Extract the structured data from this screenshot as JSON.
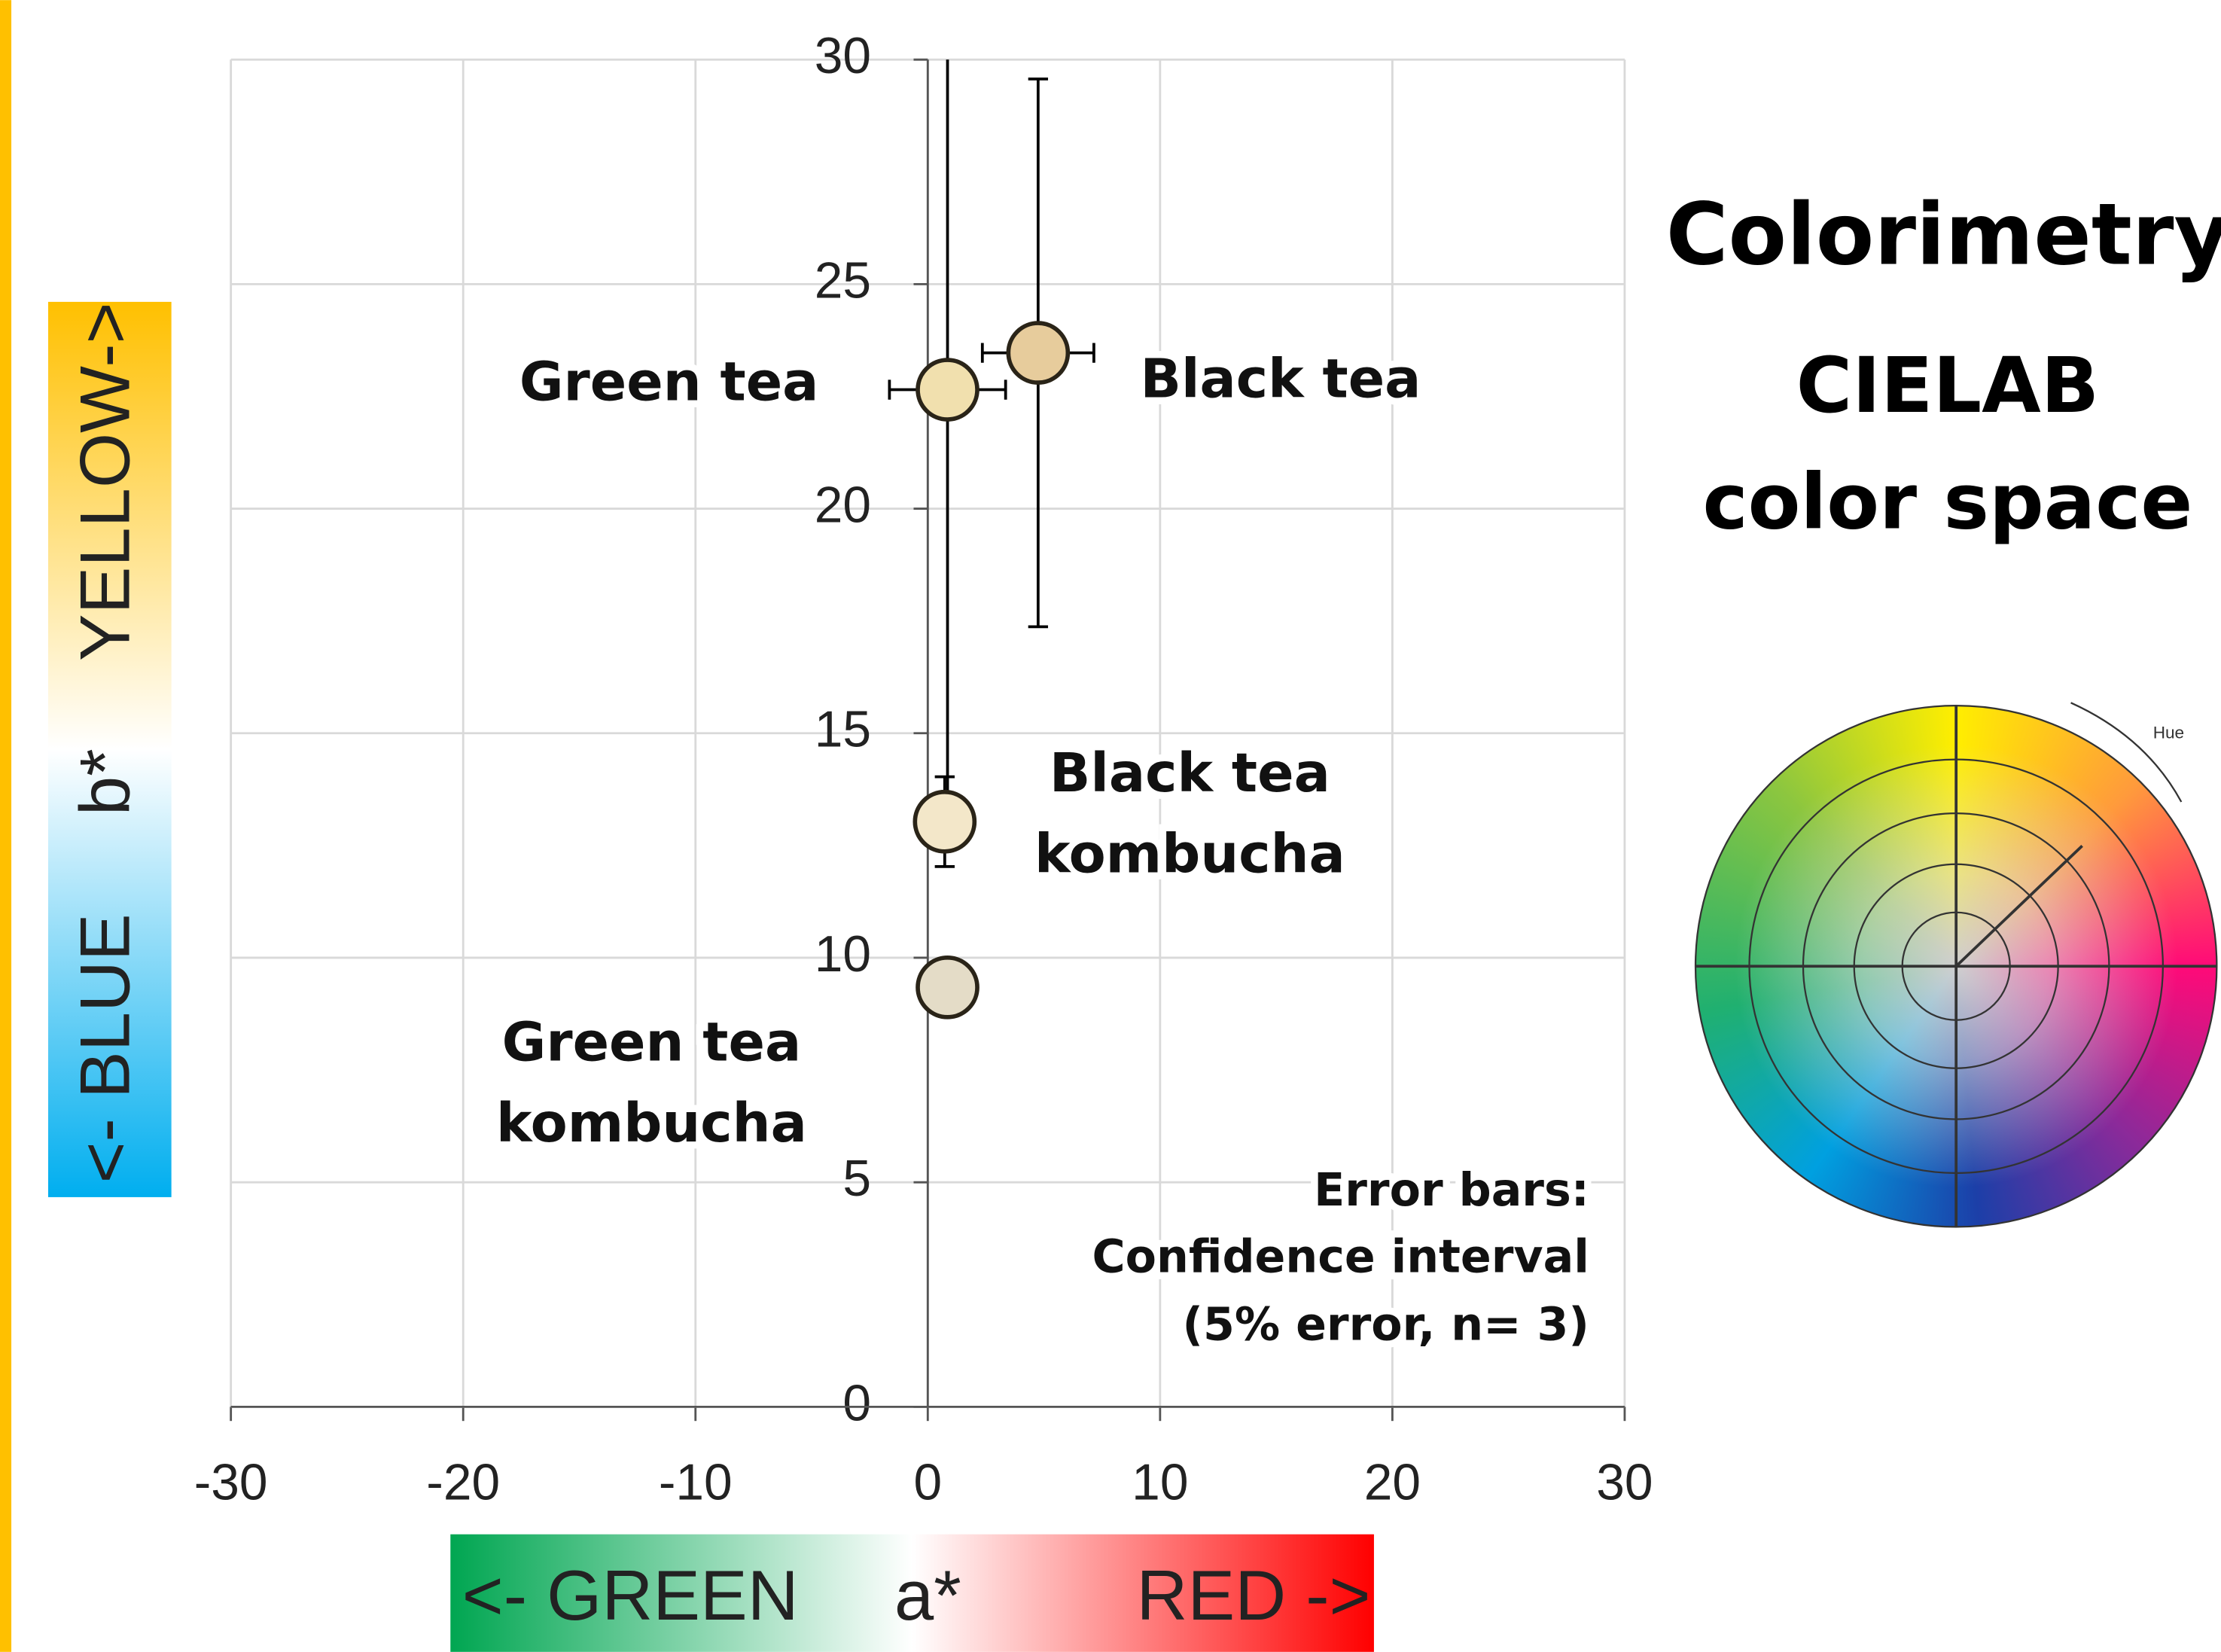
{
  "chart_data": {
    "type": "scatter",
    "title": "Colorimetry",
    "subtitle": [
      "CIELAB",
      "color space"
    ],
    "x_axis": {
      "left": "<- GREEN",
      "mid": "a*",
      "right": "RED ->"
    },
    "y_axis": {
      "left": "<- BLUE",
      "mid": "b*",
      "right": "YELLOW->"
    },
    "note": [
      "Error bars:",
      "Confidence interval",
      "(5% error, n= 3)"
    ],
    "wheel_label": "Hue",
    "xlim": [
      -30,
      30
    ],
    "xticks": [
      -30,
      -20,
      -10,
      0,
      10,
      20,
      30
    ],
    "ylim": [
      0,
      30
    ],
    "yticks": [
      0,
      5,
      10,
      15,
      20,
      25,
      30
    ],
    "grid": true,
    "series": [
      {
        "name": "Green tea",
        "color": "#f1e0ae",
        "x": 0.85,
        "y": 22.65,
        "x_err": 2.5,
        "y_err": 9
      },
      {
        "name": "Black tea",
        "color": "#e7cc9c",
        "x": 4.75,
        "y": 23.47,
        "x_err": 2.4,
        "y_err": 6.1
      },
      {
        "name": "Black tea kombucha",
        "color": "#f3e7c9",
        "x": 0.73,
        "y": 13.03,
        "x_err": 0.3,
        "y_err": 1.0
      },
      {
        "name": "Green tea kombucha",
        "color": "#e4dcc7",
        "x": 0.85,
        "y": 9.34,
        "x_err": 0.2,
        "y_err": 0.2
      }
    ]
  }
}
